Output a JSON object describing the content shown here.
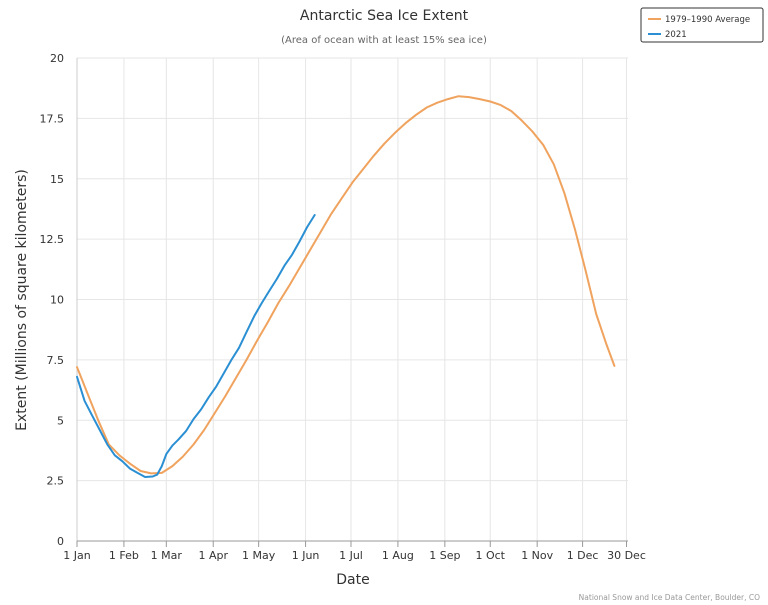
{
  "chart_data": {
    "type": "line",
    "title": "Antarctic Sea Ice Extent",
    "subtitle": "(Area of ocean with at least 15% sea ice)",
    "xlabel": "Date",
    "ylabel": "Extent (Millions of square kilometers)",
    "credit": "National Snow and Ice Data Center, Boulder, CO",
    "x_unit": "day of year",
    "xlim": [
      1,
      365
    ],
    "ylim": [
      0,
      20
    ],
    "grid": true,
    "legend_position": "top-right",
    "x_ticks": [
      {
        "day": 1,
        "label": "1 Jan"
      },
      {
        "day": 32,
        "label": "1 Feb"
      },
      {
        "day": 60,
        "label": "1 Mar"
      },
      {
        "day": 91,
        "label": "1 Apr"
      },
      {
        "day": 121,
        "label": "1 May"
      },
      {
        "day": 152,
        "label": "1 Jun"
      },
      {
        "day": 182,
        "label": "1 Jul"
      },
      {
        "day": 213,
        "label": "1 Aug"
      },
      {
        "day": 244,
        "label": "1 Sep"
      },
      {
        "day": 274,
        "label": "1 Oct"
      },
      {
        "day": 305,
        "label": "1 Nov"
      },
      {
        "day": 335,
        "label": "1 Dec"
      },
      {
        "day": 364,
        "label": "30 Dec"
      }
    ],
    "y_ticks": [
      {
        "value": 0,
        "label": "0"
      },
      {
        "value": 2.5,
        "label": "2.5"
      },
      {
        "value": 5,
        "label": "5"
      },
      {
        "value": 7.5,
        "label": "7.5"
      },
      {
        "value": 10,
        "label": "10"
      },
      {
        "value": 12.5,
        "label": "12.5"
      },
      {
        "value": 15,
        "label": "15"
      },
      {
        "value": 17.5,
        "label": "17.5"
      },
      {
        "value": 20,
        "label": "20"
      }
    ],
    "series": [
      {
        "name": "1979–1990 Average",
        "color": "#f0a35e",
        "points": [
          [
            1,
            7.2
          ],
          [
            8,
            6.1
          ],
          [
            15,
            5.0
          ],
          [
            22,
            4.0
          ],
          [
            29,
            3.55
          ],
          [
            36,
            3.2
          ],
          [
            43,
            2.9
          ],
          [
            50,
            2.8
          ],
          [
            57,
            2.82
          ],
          [
            64,
            3.1
          ],
          [
            71,
            3.5
          ],
          [
            78,
            4.0
          ],
          [
            85,
            4.6
          ],
          [
            92,
            5.3
          ],
          [
            99,
            6.0
          ],
          [
            106,
            6.75
          ],
          [
            113,
            7.5
          ],
          [
            120,
            8.3
          ],
          [
            127,
            9.05
          ],
          [
            134,
            9.85
          ],
          [
            141,
            10.55
          ],
          [
            148,
            11.3
          ],
          [
            155,
            12.05
          ],
          [
            162,
            12.8
          ],
          [
            169,
            13.55
          ],
          [
            176,
            14.2
          ],
          [
            183,
            14.85
          ],
          [
            190,
            15.4
          ],
          [
            197,
            15.95
          ],
          [
            204,
            16.45
          ],
          [
            211,
            16.9
          ],
          [
            218,
            17.3
          ],
          [
            225,
            17.65
          ],
          [
            232,
            17.95
          ],
          [
            239,
            18.15
          ],
          [
            246,
            18.3
          ],
          [
            253,
            18.42
          ],
          [
            260,
            18.38
          ],
          [
            267,
            18.3
          ],
          [
            274,
            18.2
          ],
          [
            281,
            18.05
          ],
          [
            288,
            17.8
          ],
          [
            295,
            17.4
          ],
          [
            302,
            16.95
          ],
          [
            309,
            16.4
          ],
          [
            316,
            15.6
          ],
          [
            323,
            14.4
          ],
          [
            330,
            12.9
          ],
          [
            337,
            11.2
          ],
          [
            344,
            9.4
          ],
          [
            351,
            8.1
          ],
          [
            356,
            7.25
          ]
        ]
      },
      {
        "name": "2021",
        "color": "#2b8fd3",
        "points": [
          [
            1,
            6.8
          ],
          [
            6,
            5.8
          ],
          [
            11,
            5.2
          ],
          [
            16,
            4.6
          ],
          [
            21,
            4.0
          ],
          [
            26,
            3.55
          ],
          [
            31,
            3.3
          ],
          [
            36,
            3.0
          ],
          [
            41,
            2.82
          ],
          [
            46,
            2.65
          ],
          [
            51,
            2.67
          ],
          [
            54,
            2.75
          ],
          [
            57,
            3.1
          ],
          [
            60,
            3.6
          ],
          [
            64,
            3.95
          ],
          [
            68,
            4.2
          ],
          [
            73,
            4.55
          ],
          [
            78,
            5.05
          ],
          [
            83,
            5.45
          ],
          [
            88,
            5.95
          ],
          [
            93,
            6.4
          ],
          [
            98,
            6.95
          ],
          [
            103,
            7.5
          ],
          [
            108,
            8.0
          ],
          [
            113,
            8.65
          ],
          [
            118,
            9.3
          ],
          [
            123,
            9.85
          ],
          [
            128,
            10.35
          ],
          [
            133,
            10.85
          ],
          [
            138,
            11.4
          ],
          [
            143,
            11.85
          ],
          [
            148,
            12.4
          ],
          [
            153,
            13.0
          ],
          [
            158,
            13.5
          ]
        ]
      }
    ]
  }
}
